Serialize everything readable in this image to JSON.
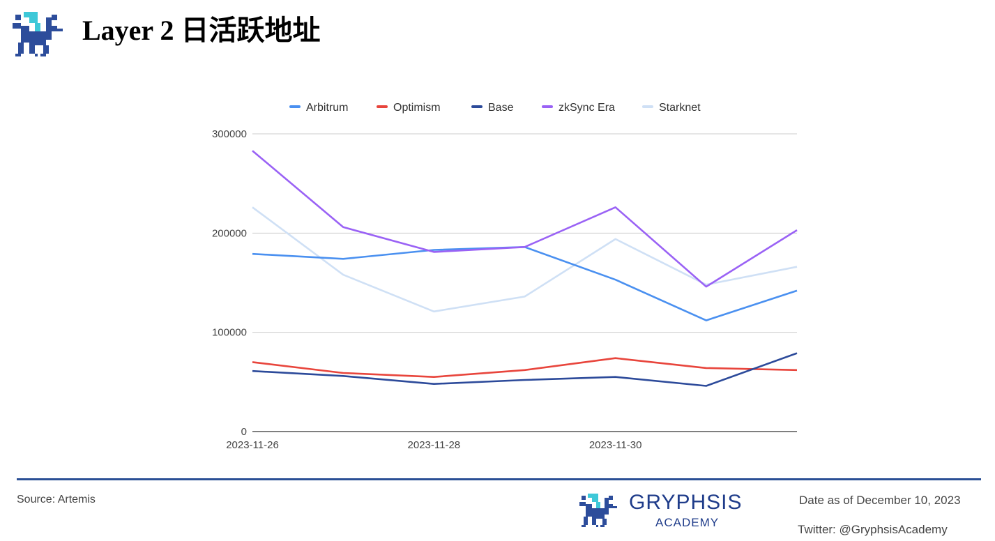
{
  "header": {
    "title": "Layer 2 日活跃地址",
    "logo_icon": "gryphon-icon"
  },
  "chart_data": {
    "type": "line",
    "x": [
      "2023-11-26",
      "2023-11-27",
      "2023-11-28",
      "2023-11-29",
      "2023-11-30",
      "2023-12-01",
      "2023-12-02"
    ],
    "x_tick_labels": [
      "2023-11-26",
      "2023-11-28",
      "2023-11-30"
    ],
    "y_ticks": [
      0,
      100000,
      200000,
      300000
    ],
    "ylim": [
      0,
      300000
    ],
    "grid": true,
    "legend_position": "top-center",
    "series": [
      {
        "name": "Arbitrum",
        "color": "#4a90f0",
        "values": [
          179000,
          174000,
          183000,
          186000,
          153000,
          112000,
          142000
        ]
      },
      {
        "name": "Optimism",
        "color": "#e8453c",
        "values": [
          70000,
          59000,
          55000,
          62000,
          74000,
          64000,
          62000
        ]
      },
      {
        "name": "Base",
        "color": "#2c4a9a",
        "values": [
          61000,
          56000,
          48000,
          52000,
          55000,
          46000,
          79000
        ]
      },
      {
        "name": "zkSync Era",
        "color": "#9a62f5",
        "values": [
          283000,
          206000,
          181000,
          186000,
          226000,
          146000,
          203000
        ]
      },
      {
        "name": "Starknet",
        "color": "#cfe0f5",
        "values": [
          226000,
          158000,
          121000,
          136000,
          194000,
          148000,
          166000
        ]
      }
    ]
  },
  "footer": {
    "source": "Source: Artemis",
    "brand_name": "GRYPHSIS",
    "brand_sub": "ACADEMY",
    "date": "Date as of December 10, 2023",
    "twitter": "Twitter: @GryphsisAcademy"
  }
}
